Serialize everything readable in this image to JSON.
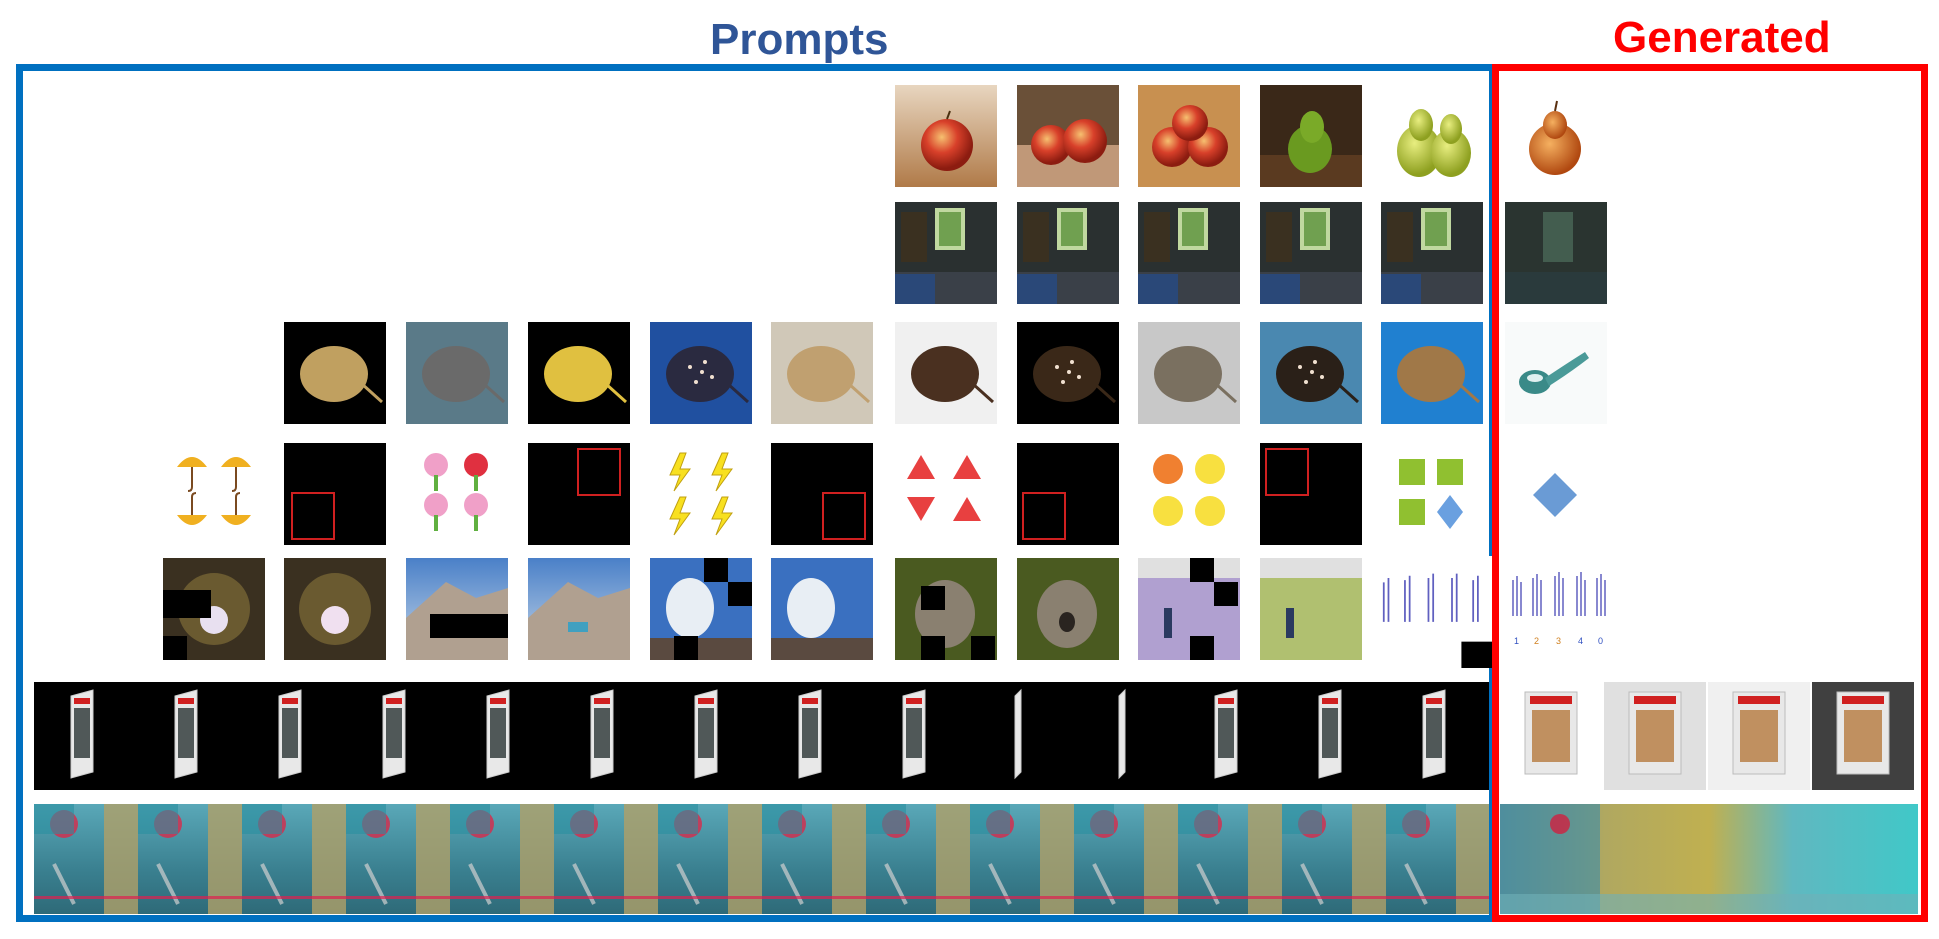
{
  "labels": {
    "prompts": "Prompts",
    "generated": "Generated"
  },
  "colors": {
    "prompts_frame": "#0070c0",
    "prompts_text": "#2f5597",
    "generated_frame": "#ff0000",
    "generated_text": "#ff0000"
  },
  "rows": [
    {
      "name": "fruit",
      "prompt_subjects": [
        "apple",
        "two-apples",
        "three-apples",
        "green-pear",
        "two-pears"
      ],
      "generated_subject": "onion-pear"
    },
    {
      "name": "room",
      "prompt_subjects": [
        "room-window",
        "room-window",
        "room-window",
        "room-window",
        "room-window"
      ],
      "generated_subject": "blurry-room"
    },
    {
      "name": "stingray",
      "prompt_subjects": [
        "stingray",
        "stingray",
        "stingray",
        "stingray",
        "stingray",
        "stingray",
        "stingray",
        "stingray",
        "stingray",
        "stingray"
      ],
      "generated_subject": "teal-object"
    },
    {
      "name": "shapes",
      "prompt_subjects": [
        "umbrellas",
        "red-box",
        "tulips",
        "red-box",
        "lightning",
        "red-box",
        "triangles",
        "red-box",
        "circles",
        "red-box",
        "squares-diamond"
      ],
      "generated_subject": "blue-diamond"
    },
    {
      "name": "inpaint",
      "prompt_subjects": [
        "tunnel-masked",
        "tunnel",
        "mountain-masked",
        "mountain",
        "geyser-masked",
        "geyser",
        "koala-masked",
        "koala",
        "tennis-masked",
        "tennis",
        "sign-language-masked"
      ],
      "generated_subject": "sign-language",
      "sign_digits": [
        "1",
        "2",
        "3",
        "4",
        "0"
      ]
    },
    {
      "name": "rotating-card",
      "prompt_frames": 14,
      "generated_frames": 4
    },
    {
      "name": "video-strip",
      "prompt_frames": 14,
      "generated_frames": 4
    }
  ]
}
